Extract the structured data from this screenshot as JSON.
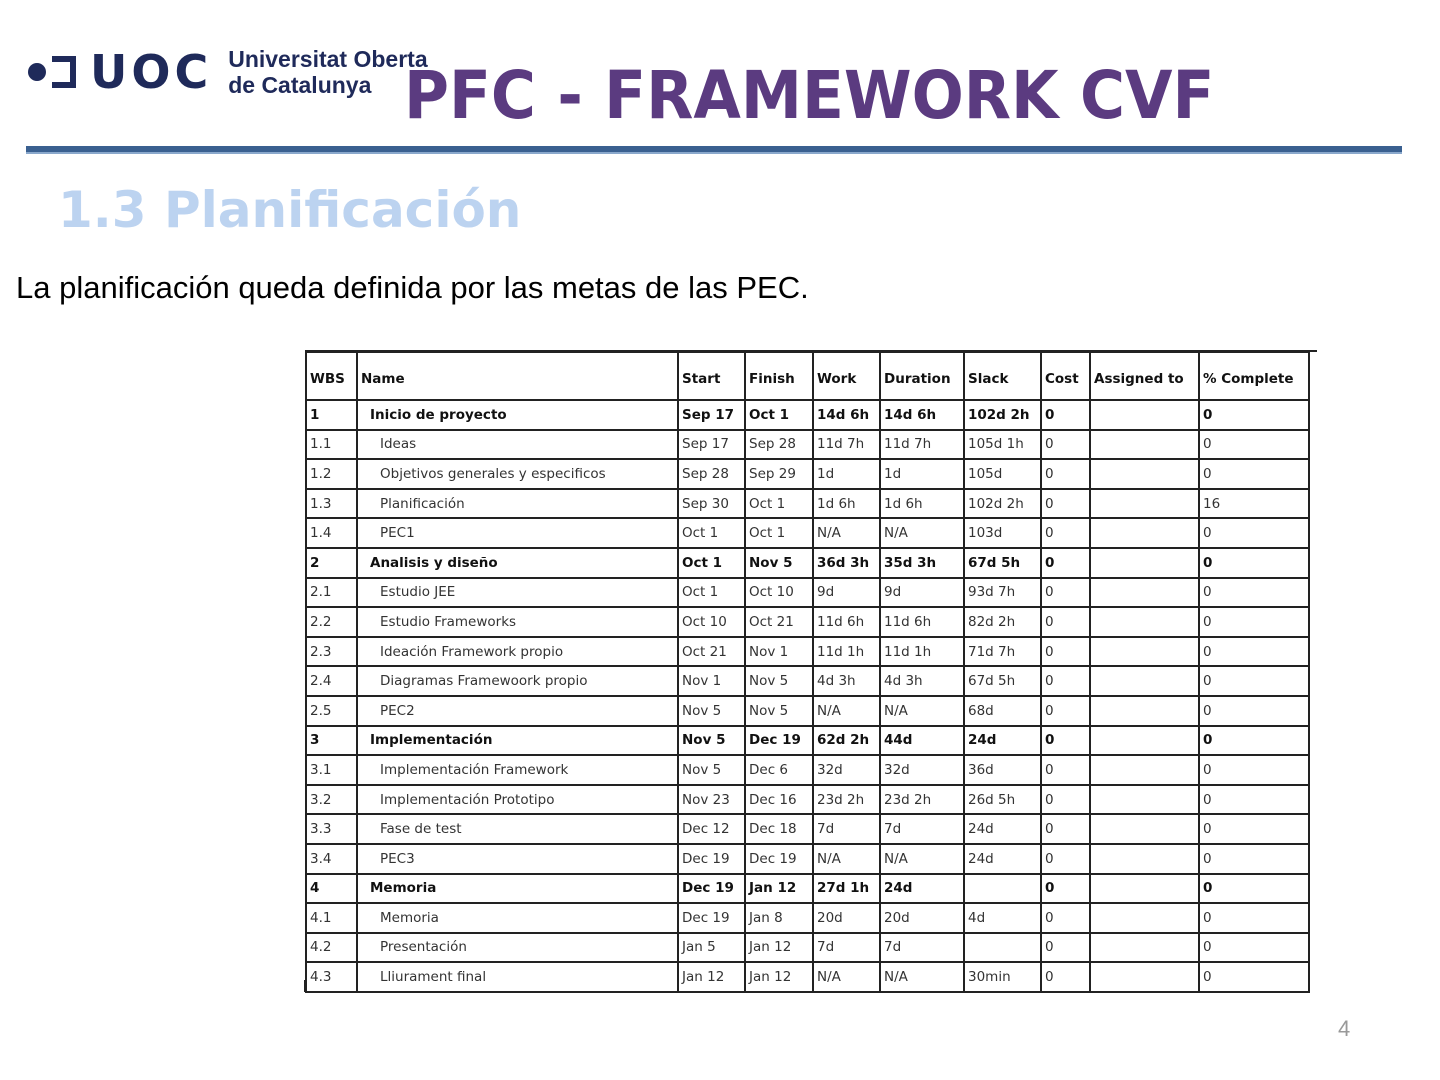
{
  "logo": {
    "mark": "UOC",
    "line1": "Universitat Oberta",
    "line2": "de Catalunya"
  },
  "title": "PFC - FRAMEWORK CVF",
  "section_title": "1.3 Planificación",
  "intro": "La planificación queda definida por las metas de las PEC.",
  "colors": {
    "title": "#5b3b80",
    "section": "#bcd3f0",
    "rule": "#3a6090",
    "logo": "#1f2a5a"
  },
  "table": {
    "columns": [
      "WBS",
      "Name",
      "Start",
      "Finish",
      "Work",
      "Duration",
      "Slack",
      "Cost",
      "Assigned to",
      "% Complete"
    ],
    "rows": [
      {
        "level": 1,
        "cells": [
          "1",
          "Inicio de proyecto",
          "Sep 17",
          "Oct 1",
          "14d 6h",
          "14d 6h",
          "102d 2h",
          "0",
          "",
          "0"
        ]
      },
      {
        "level": 2,
        "cells": [
          "1.1",
          "Ideas",
          "Sep 17",
          "Sep 28",
          "11d 7h",
          "11d 7h",
          "105d 1h",
          "0",
          "",
          "0"
        ]
      },
      {
        "level": 2,
        "cells": [
          "1.2",
          "Objetivos generales y especificos",
          "Sep 28",
          "Sep 29",
          "1d",
          "1d",
          "105d",
          "0",
          "",
          "0"
        ]
      },
      {
        "level": 2,
        "cells": [
          "1.3",
          "Planificación",
          "Sep 30",
          "Oct 1",
          "1d 6h",
          "1d 6h",
          "102d 2h",
          "0",
          "",
          "16"
        ]
      },
      {
        "level": 2,
        "cells": [
          "1.4",
          "PEC1",
          "Oct 1",
          "Oct 1",
          "N/A",
          "N/A",
          "103d",
          "0",
          "",
          "0"
        ]
      },
      {
        "level": 1,
        "cells": [
          "2",
          "Analisis y diseño",
          "Oct 1",
          "Nov 5",
          "36d 3h",
          "35d 3h",
          "67d 5h",
          "0",
          "",
          "0"
        ]
      },
      {
        "level": 2,
        "cells": [
          "2.1",
          "Estudio JEE",
          "Oct 1",
          "Oct 10",
          "9d",
          "9d",
          "93d 7h",
          "0",
          "",
          "0"
        ]
      },
      {
        "level": 2,
        "cells": [
          "2.2",
          "Estudio Frameworks",
          "Oct 10",
          "Oct 21",
          "11d 6h",
          "11d 6h",
          "82d 2h",
          "0",
          "",
          "0"
        ]
      },
      {
        "level": 2,
        "cells": [
          "2.3",
          "Ideación  Framework propio",
          "Oct 21",
          "Nov 1",
          "11d 1h",
          "11d 1h",
          "71d 7h",
          "0",
          "",
          "0"
        ]
      },
      {
        "level": 2,
        "cells": [
          "2.4",
          "Diagramas Framewoork propio",
          "Nov 1",
          "Nov 5",
          "4d 3h",
          "4d 3h",
          "67d 5h",
          "0",
          "",
          "0"
        ]
      },
      {
        "level": 2,
        "cells": [
          "2.5",
          "PEC2",
          "Nov 5",
          "Nov 5",
          "N/A",
          "N/A",
          "68d",
          "0",
          "",
          "0"
        ]
      },
      {
        "level": 1,
        "cells": [
          "3",
          "Implementación",
          "Nov 5",
          "Dec 19",
          "62d 2h",
          "44d",
          "24d",
          "0",
          "",
          "0"
        ]
      },
      {
        "level": 2,
        "cells": [
          "3.1",
          "Implementación Framework",
          "Nov 5",
          "Dec 6",
          "32d",
          "32d",
          "36d",
          "0",
          "",
          "0"
        ]
      },
      {
        "level": 2,
        "cells": [
          "3.2",
          "Implementación Prototipo",
          "Nov 23",
          "Dec 16",
          "23d 2h",
          "23d 2h",
          "26d 5h",
          "0",
          "",
          "0"
        ]
      },
      {
        "level": 2,
        "cells": [
          "3.3",
          "Fase de test",
          "Dec 12",
          "Dec 18",
          "7d",
          "7d",
          "24d",
          "0",
          "",
          "0"
        ]
      },
      {
        "level": 2,
        "cells": [
          "3.4",
          "PEC3",
          "Dec 19",
          "Dec 19",
          "N/A",
          "N/A",
          "24d",
          "0",
          "",
          "0"
        ]
      },
      {
        "level": 1,
        "cells": [
          "4",
          "Memoria",
          "Dec 19",
          "Jan 12",
          "27d 1h",
          "24d",
          "",
          "0",
          "",
          "0"
        ]
      },
      {
        "level": 2,
        "cells": [
          "4.1",
          "Memoria",
          "Dec 19",
          "Jan 8",
          "20d",
          "20d",
          "4d",
          "0",
          "",
          "0"
        ]
      },
      {
        "level": 2,
        "cells": [
          "4.2",
          "Presentación",
          "Jan 5",
          "Jan 12",
          "7d",
          "7d",
          "",
          "0",
          "",
          "0"
        ]
      },
      {
        "level": 2,
        "cells": [
          "4.3",
          "Lliurament final",
          "Jan 12",
          "Jan 12",
          "N/A",
          "N/A",
          "30min",
          "0",
          "",
          "0"
        ]
      }
    ]
  },
  "page_number": "4"
}
